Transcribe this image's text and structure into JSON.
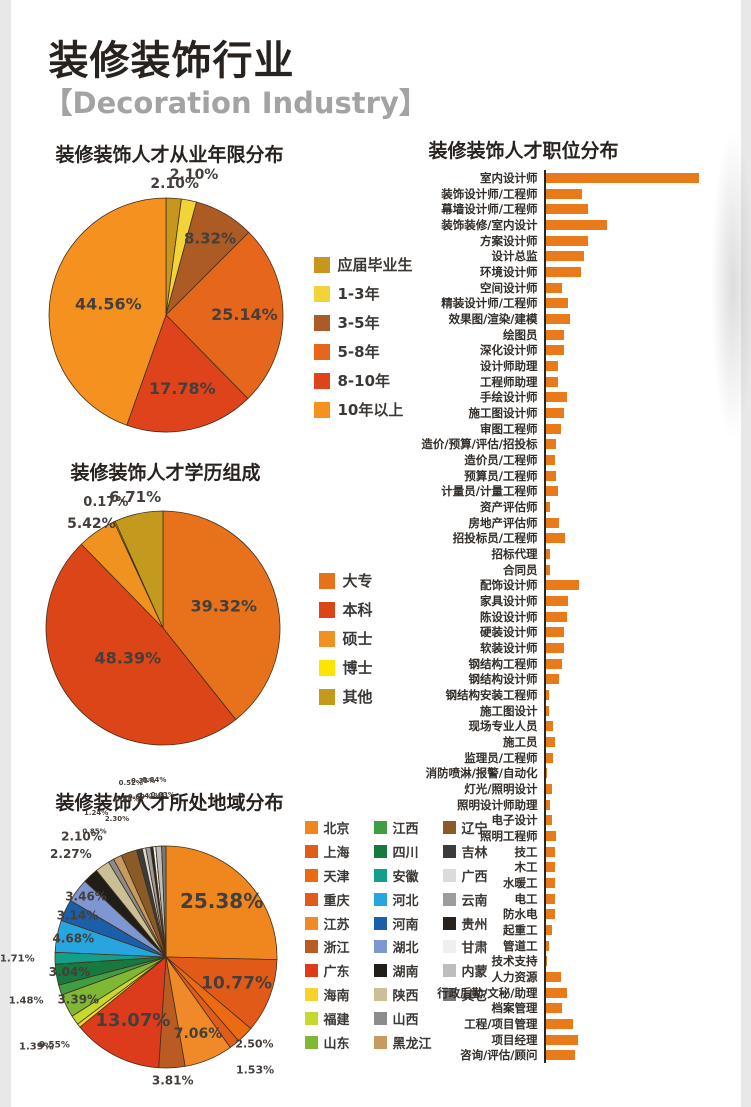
{
  "header": {
    "title": "装修装饰行业",
    "subtitle": "【Decoration Industry】"
  },
  "colors": {
    "accent_orange": "#E87A1A",
    "title_dark": "#292320",
    "subtitle_gray": "#A3A3A3"
  },
  "chart_data": [
    {
      "id": "experience",
      "type": "pie",
      "title": "装修装饰人才从业年限分布",
      "slices": [
        {
          "label": "应届毕业生",
          "value": 2.1,
          "color": "#C6961F",
          "inside": false,
          "lf": 1.12,
          "fs": 14
        },
        {
          "label": "1-3年",
          "value": 2.1,
          "color": "#F2D438",
          "inside": false,
          "lf": 1.22,
          "fs": 14
        },
        {
          "label": "3-5年",
          "value": 8.32,
          "color": "#AD5B24",
          "inside": true,
          "lf": 0.75,
          "fs": 15
        },
        {
          "label": "5-8年",
          "value": 25.14,
          "color": "#E6661C",
          "inside": true,
          "lf": 0.67,
          "fs": 16
        },
        {
          "label": "8-10年",
          "value": 17.78,
          "color": "#DE431C",
          "inside": true,
          "lf": 0.65,
          "fs": 16
        },
        {
          "label": "10年以上",
          "value": 44.56,
          "color": "#F5911E",
          "inside": true,
          "lf": 0.5,
          "fs": 16
        }
      ]
    },
    {
      "id": "education",
      "type": "pie",
      "title": "装修装饰人才学历组成",
      "slices": [
        {
          "label": "大专",
          "value": 39.32,
          "color": "#E8721C",
          "inside": true,
          "lf": 0.55,
          "fs": 16
        },
        {
          "label": "本科",
          "value": 48.39,
          "color": "#DC4517",
          "inside": true,
          "lf": 0.4,
          "fs": 16
        },
        {
          "label": "硕士",
          "value": 5.42,
          "color": "#F0921F",
          "inside": false,
          "lf": 1.08,
          "fs": 14
        },
        {
          "label": "博士",
          "value": 0.17,
          "color": "#FFE400",
          "inside": false,
          "lf": 1.18,
          "fs": 13
        },
        {
          "label": "其他",
          "value": 6.71,
          "color": "#C49A1E",
          "inside": false,
          "lf": 1.14,
          "fs": 15
        }
      ]
    },
    {
      "id": "region",
      "type": "pie",
      "title": "装修装饰人才所处地域分布",
      "slices": [
        {
          "label": "北京",
          "value": 25.38,
          "color": "#F0861E",
          "inside": true,
          "lf": 0.7,
          "fs": 20
        },
        {
          "label": "上海",
          "value": 10.77,
          "color": "#E25A18",
          "inside": true,
          "lf": 0.68,
          "fs": 17
        },
        {
          "label": "天津",
          "value": 2.5,
          "color": "#EC6B12",
          "inside": false,
          "lf": 1.12,
          "fs": 11
        },
        {
          "label": "重庆",
          "value": 1.53,
          "color": "#E05C1C",
          "inside": false,
          "lf": 1.3,
          "fs": 11
        },
        {
          "label": "江苏",
          "value": 7.06,
          "color": "#F08A28",
          "inside": true,
          "lf": 0.75,
          "fs": 14
        },
        {
          "label": "浙江",
          "value": 3.81,
          "color": "#BA5B24",
          "inside": false,
          "lf": 1.12,
          "fs": 12
        },
        {
          "label": "广东",
          "value": 13.07,
          "color": "#DC3B1C",
          "inside": true,
          "lf": 0.65,
          "fs": 18
        },
        {
          "label": "海南",
          "value": 0.55,
          "color": "#F7D329",
          "inside": false,
          "lf": 1.28,
          "fs": 9
        },
        {
          "label": "福建",
          "value": 1.39,
          "color": "#C6D92F",
          "inside": false,
          "lf": 1.42,
          "fs": 10
        },
        {
          "label": "山东",
          "value": 3.39,
          "color": "#7FB834",
          "inside": false,
          "lf": 0.88,
          "fs": 12
        },
        {
          "label": "江西",
          "value": 1.48,
          "color": "#3F9E44",
          "inside": false,
          "lf": 1.32,
          "fs": 10
        },
        {
          "label": "四川",
          "value": 3.04,
          "color": "#17793F",
          "inside": false,
          "lf": 0.88,
          "fs": 12
        },
        {
          "label": "安徽",
          "value": 1.71,
          "color": "#12A08B",
          "inside": false,
          "lf": 1.34,
          "fs": 10
        },
        {
          "label": "河北",
          "value": 4.68,
          "color": "#27A5DF",
          "inside": false,
          "lf": 0.85,
          "fs": 12
        },
        {
          "label": "河南",
          "value": 3.14,
          "color": "#1A5FA8",
          "inside": false,
          "lf": 0.88,
          "fs": 12
        },
        {
          "label": "湖北",
          "value": 3.46,
          "color": "#7E97D3",
          "inside": false,
          "lf": 0.9,
          "fs": 12
        },
        {
          "label": "湖南",
          "value": 2.27,
          "color": "#211D18",
          "inside": false,
          "lf": 1.26,
          "fs": 12
        },
        {
          "label": "陕西",
          "value": 2.1,
          "color": "#CBBF97",
          "inside": false,
          "lf": 1.32,
          "fs": 12
        },
        {
          "label": "山西",
          "value": 0.85,
          "color": "#8C8C8C",
          "inside": false,
          "lf": 1.3,
          "fs": 7
        },
        {
          "label": "黑龙江",
          "value": 1.24,
          "color": "#C69A60",
          "inside": false,
          "lf": 1.44,
          "fs": 7
        },
        {
          "label": "辽宁",
          "value": 2.3,
          "color": "#8A5A28",
          "inside": false,
          "lf": 1.32,
          "fs": 7
        },
        {
          "label": "吉林",
          "value": 0.84,
          "color": "#3B3B39",
          "inside": false,
          "lf": 1.46,
          "fs": 7
        },
        {
          "label": "广西",
          "value": 0.52,
          "color": "#DBDBDB",
          "inside": false,
          "lf": 1.6,
          "fs": 7
        },
        {
          "label": "云南",
          "value": 0.69,
          "color": "#9D9D9D",
          "inside": false,
          "lf": 1.46,
          "fs": 7
        },
        {
          "label": "贵州",
          "value": 0.35,
          "color": "#29231D",
          "inside": false,
          "lf": 1.6,
          "fs": 7
        },
        {
          "label": "甘肃",
          "value": 0.41,
          "color": "#EFEFED",
          "inside": false,
          "lf": 1.46,
          "fs": 7
        },
        {
          "label": "内蒙",
          "value": 0.84,
          "color": "#BDBDBD",
          "inside": false,
          "lf": 1.6,
          "fs": 7
        },
        {
          "label": "其它",
          "value": 0.63,
          "color": "#787878",
          "inside": false,
          "lf": 1.46,
          "fs": 7
        }
      ]
    },
    {
      "id": "position",
      "type": "bar",
      "title": "装修装饰人才职位分布",
      "bar_color": "#E87A1A",
      "note": "no numeric axis shown; values are relative bar lengths, max = 100",
      "ylim": [
        0,
        100
      ],
      "categories": [
        "室内设计师",
        "装饰设计师/工程师",
        "幕墙设计师/工程师",
        "装饰装修/室内设计",
        "方案设计师",
        "设计总监",
        "环境设计师",
        "空间设计师",
        "精装设计师/工程师",
        "效果图/渲染/建模",
        "绘图员",
        "深化设计师",
        "设计师助理",
        "工程师助理",
        "手绘设计师",
        "施工图设计师",
        "审图工程师",
        "造价/预算/评估/招投标",
        "造价员/工程师",
        "预算员/工程师",
        "计量员/计量工程师",
        "资产评估师",
        "房地产评估师",
        "招投标员/工程师",
        "招标代理",
        "合同员",
        "配饰设计师",
        "家具设计师",
        "陈设设计师",
        "硬装设计师",
        "软装设计师",
        "钢结构工程师",
        "钢结构设计师",
        "钢结构安装工程师",
        "施工图设计",
        "现场专业人员",
        "施工员",
        "监理员/工程师",
        "消防喷淋/报警/自动化",
        "灯光/照明设计",
        "照明设计师助理",
        "电子设计",
        "照明工程师",
        "技工",
        "木工",
        "水暖工",
        "电工",
        "防水电",
        "起重工",
        "管道工",
        "技术支持",
        "人力资源",
        "行政后勤/文秘/助理",
        "档案管理",
        "工程/项目管理",
        "项目经理",
        "咨询/评估/顾问"
      ],
      "values": [
        100,
        24,
        28,
        40,
        28,
        25,
        23,
        11,
        15,
        16,
        12,
        12,
        8,
        8,
        14,
        12,
        10,
        7,
        6,
        7,
        8,
        3,
        9,
        13,
        3,
        3,
        22,
        15,
        14,
        12,
        12,
        11,
        9,
        2,
        2,
        5,
        6,
        5,
        1,
        4,
        3,
        4,
        7,
        6,
        6,
        6,
        6,
        6,
        4,
        2,
        1,
        10,
        14,
        11,
        18,
        21,
        19
      ]
    }
  ]
}
